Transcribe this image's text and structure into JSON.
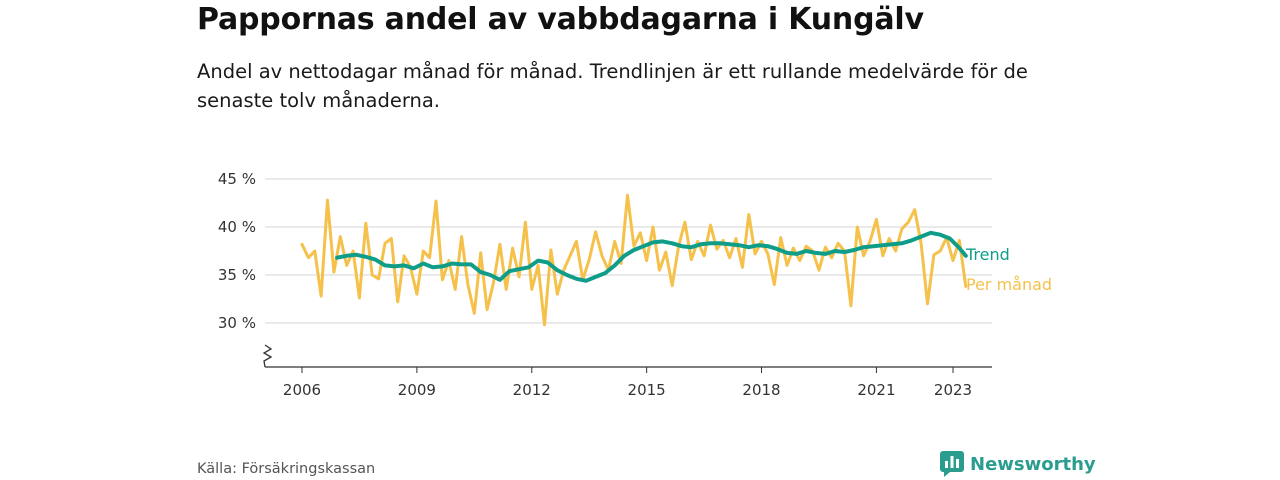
{
  "header": {
    "title": "Pappornas andel av vabbdagarna i Kungälv",
    "subtitle": "Andel av nettodagar månad för månad. Trendlinjen är ett rullande medelvärde för de senaste tolv månaderna."
  },
  "footer": {
    "source": "Källa: Försäkringskassan",
    "brand": "Newsworthy"
  },
  "colors": {
    "monthly": "#f5c14b",
    "trend": "#0f9d8a",
    "grid": "#d6d6d6",
    "axis": "#333333",
    "brand": "#2a9d8f"
  },
  "chart_data": {
    "type": "line",
    "x_ticks": [
      "2006",
      "2009",
      "2012",
      "2015",
      "2018",
      "2021",
      "2023"
    ],
    "y_ticks": [
      "30 %",
      "35 %",
      "40 %",
      "45 %"
    ],
    "ylim": [
      30,
      45
    ],
    "y_axis_break": true,
    "grid": "horizontal",
    "legend": "direct labels at line ends",
    "series": [
      {
        "name": "Per månad",
        "x": [
          "2006-01",
          "2006-03",
          "2006-05",
          "2006-07",
          "2006-09",
          "2006-11",
          "2007-01",
          "2007-03",
          "2007-05",
          "2007-07",
          "2007-09",
          "2007-11",
          "2008-01",
          "2008-03",
          "2008-05",
          "2008-07",
          "2008-09",
          "2008-11",
          "2009-01",
          "2009-03",
          "2009-05",
          "2009-07",
          "2009-09",
          "2009-11",
          "2010-01",
          "2010-03",
          "2010-05",
          "2010-07",
          "2010-09",
          "2010-11",
          "2011-01",
          "2011-03",
          "2011-05",
          "2011-07",
          "2011-09",
          "2011-11",
          "2012-01",
          "2012-03",
          "2012-05",
          "2012-07",
          "2012-09",
          "2012-11",
          "2013-01",
          "2013-03",
          "2013-05",
          "2013-07",
          "2013-09",
          "2013-11",
          "2014-01",
          "2014-03",
          "2014-05",
          "2014-07",
          "2014-09",
          "2014-11",
          "2015-01",
          "2015-03",
          "2015-05",
          "2015-07",
          "2015-09",
          "2015-11",
          "2016-01",
          "2016-03",
          "2016-05",
          "2016-07",
          "2016-09",
          "2016-11",
          "2017-01",
          "2017-03",
          "2017-05",
          "2017-07",
          "2017-09",
          "2017-11",
          "2018-01",
          "2018-03",
          "2018-05",
          "2018-07",
          "2018-09",
          "2018-11",
          "2019-01",
          "2019-03",
          "2019-05",
          "2019-07",
          "2019-09",
          "2019-11",
          "2020-01",
          "2020-03",
          "2020-05",
          "2020-07",
          "2020-09",
          "2020-11",
          "2021-01",
          "2021-03",
          "2021-05",
          "2021-07",
          "2021-09",
          "2021-11",
          "2022-01",
          "2022-03",
          "2022-05",
          "2022-07",
          "2022-09",
          "2022-11",
          "2023-01",
          "2023-03",
          "2023-05"
        ],
        "values": [
          38.2,
          36.8,
          37.5,
          32.8,
          42.8,
          35.3,
          39.0,
          36.0,
          37.5,
          32.6,
          40.4,
          35.0,
          34.6,
          38.3,
          38.8,
          32.2,
          37.0,
          35.8,
          33.0,
          37.5,
          36.8,
          42.7,
          34.5,
          36.5,
          33.5,
          39.0,
          34.0,
          31.0,
          37.3,
          31.4,
          34.2,
          38.2,
          33.5,
          37.8,
          34.8,
          40.5,
          33.5,
          36.0,
          29.8,
          37.6,
          33.0,
          35.5,
          37.0,
          38.5,
          34.5,
          36.6,
          39.5,
          37.0,
          35.5,
          38.5,
          36.2,
          43.3,
          38.0,
          39.4,
          36.5,
          40.0,
          35.5,
          37.4,
          33.9,
          38.0,
          40.5,
          36.6,
          38.5,
          37.0,
          40.2,
          37.7,
          38.6,
          36.8,
          38.8,
          35.8,
          41.3,
          37.2,
          38.5,
          37.2,
          34.0,
          38.9,
          36.0,
          37.8,
          36.5,
          38.0,
          37.5,
          35.5,
          37.9,
          36.8,
          38.3,
          37.5,
          31.8,
          40.0,
          37.0,
          38.5,
          40.8,
          37.0,
          38.8,
          37.5,
          39.8,
          40.5,
          41.8,
          38.3,
          32.0,
          37.1,
          37.5,
          38.9,
          36.5,
          38.6,
          33.8
        ]
      },
      {
        "name": "Trend",
        "x": [
          "2006-12",
          "2007-03",
          "2007-06",
          "2007-09",
          "2007-12",
          "2008-03",
          "2008-06",
          "2008-09",
          "2008-12",
          "2009-03",
          "2009-06",
          "2009-09",
          "2009-12",
          "2010-03",
          "2010-06",
          "2010-09",
          "2010-12",
          "2011-03",
          "2011-06",
          "2011-09",
          "2011-12",
          "2012-03",
          "2012-06",
          "2012-09",
          "2012-12",
          "2013-03",
          "2013-06",
          "2013-09",
          "2013-12",
          "2014-03",
          "2014-06",
          "2014-09",
          "2014-12",
          "2015-03",
          "2015-06",
          "2015-09",
          "2015-12",
          "2016-03",
          "2016-06",
          "2016-09",
          "2016-12",
          "2017-03",
          "2017-06",
          "2017-09",
          "2017-12",
          "2018-03",
          "2018-06",
          "2018-09",
          "2018-12",
          "2019-03",
          "2019-06",
          "2019-09",
          "2019-12",
          "2020-03",
          "2020-06",
          "2020-09",
          "2020-12",
          "2021-03",
          "2021-06",
          "2021-09",
          "2021-12",
          "2022-03",
          "2022-06",
          "2022-09",
          "2022-12",
          "2023-03",
          "2023-05"
        ],
        "values": [
          36.8,
          37.0,
          37.1,
          36.9,
          36.6,
          36.0,
          35.9,
          36.0,
          35.7,
          36.2,
          35.8,
          35.9,
          36.2,
          36.1,
          36.1,
          35.3,
          35.0,
          34.5,
          35.4,
          35.6,
          35.8,
          36.5,
          36.3,
          35.5,
          35.0,
          34.6,
          34.4,
          34.8,
          35.2,
          36.0,
          37.0,
          37.6,
          38.0,
          38.4,
          38.5,
          38.3,
          38.0,
          37.9,
          38.2,
          38.3,
          38.3,
          38.2,
          38.1,
          37.9,
          38.1,
          38.0,
          37.7,
          37.3,
          37.2,
          37.5,
          37.3,
          37.2,
          37.5,
          37.4,
          37.6,
          37.9,
          38.0,
          38.1,
          38.2,
          38.3,
          38.6,
          39.0,
          39.4,
          39.2,
          38.8,
          37.8,
          37.0
        ]
      }
    ]
  }
}
